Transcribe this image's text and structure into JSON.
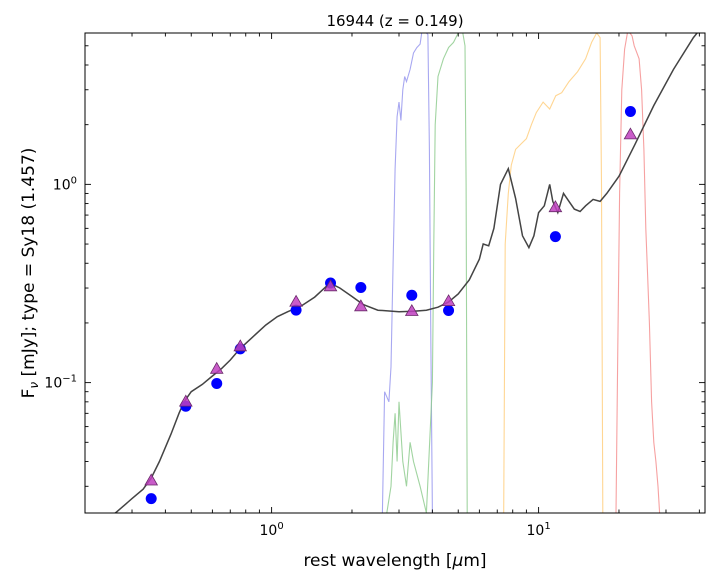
{
  "chart_data": {
    "type": "scatter",
    "title": "16944 (z = 0.149)",
    "xlabel_prefix": "rest wavelength [",
    "xlabel_mu": "μ",
    "xlabel_suffix": "m]",
    "ylabel_prefix": "F",
    "ylabel_sub": "ν",
    "ylabel_suffix": " [mJy];  type = Sy18 (1.457)",
    "xscale": "log",
    "yscale": "log",
    "xlim": [
      0.2,
      42
    ],
    "ylim": [
      0.022,
      5.8
    ],
    "x_tick_labels": [
      {
        "value": 1,
        "base": "10",
        "exp": "0"
      },
      {
        "value": 10,
        "base": "10",
        "exp": "1"
      }
    ],
    "y_tick_labels": [
      {
        "value": 0.1,
        "base": "10",
        "exp": "−1"
      },
      {
        "value": 1,
        "base": "10",
        "exp": "0"
      }
    ],
    "grid": false,
    "legend": "none",
    "colors": {
      "observed": "#0000ff",
      "model_photometry": "#bf40bf",
      "sed": "#444444",
      "filter_w1": "#9999ee",
      "filter_w2": "#90cc90",
      "filter_w3": "#ffcf80",
      "filter_w4": "#f59090"
    },
    "observed_points": [
      {
        "x": 0.354,
        "y": 0.026
      },
      {
        "x": 0.477,
        "y": 0.076
      },
      {
        "x": 0.623,
        "y": 0.099
      },
      {
        "x": 0.763,
        "y": 0.148
      },
      {
        "x": 1.235,
        "y": 0.232
      },
      {
        "x": 1.662,
        "y": 0.318
      },
      {
        "x": 2.159,
        "y": 0.302
      },
      {
        "x": 3.35,
        "y": 0.276
      },
      {
        "x": 4.6,
        "y": 0.231
      },
      {
        "x": 11.56,
        "y": 0.545
      },
      {
        "x": 22.08,
        "y": 2.33
      }
    ],
    "model_points": [
      {
        "x": 0.354,
        "y": 0.032
      },
      {
        "x": 0.477,
        "y": 0.08
      },
      {
        "x": 0.623,
        "y": 0.117
      },
      {
        "x": 0.763,
        "y": 0.152
      },
      {
        "x": 1.235,
        "y": 0.255
      },
      {
        "x": 1.662,
        "y": 0.305
      },
      {
        "x": 2.159,
        "y": 0.242
      },
      {
        "x": 3.35,
        "y": 0.229
      },
      {
        "x": 4.6,
        "y": 0.257
      },
      {
        "x": 11.56,
        "y": 0.765
      },
      {
        "x": 22.08,
        "y": 1.78
      }
    ],
    "sed_model": {
      "x": [
        0.2,
        0.26,
        0.3,
        0.33,
        0.354,
        0.38,
        0.42,
        0.45,
        0.47,
        0.5,
        0.55,
        0.6,
        0.65,
        0.7,
        0.76,
        0.85,
        0.95,
        1.05,
        1.15,
        1.3,
        1.45,
        1.6,
        1.7,
        1.8,
        2.0,
        2.2,
        2.5,
        3.0,
        3.4,
        3.8,
        4.2,
        4.6,
        5.0,
        5.5,
        6.0,
        6.2,
        6.5,
        6.8,
        7.2,
        7.7,
        8.2,
        8.7,
        9.2,
        9.6,
        10.0,
        10.5,
        11.0,
        11.3,
        11.8,
        12.4,
        13.0,
        13.6,
        14.3,
        15.0,
        16.0,
        17.0,
        18.0,
        20.0,
        23.0,
        27.0,
        32.0,
        38.0,
        42.0
      ],
      "y": [
        0.02,
        0.022,
        0.026,
        0.029,
        0.033,
        0.04,
        0.055,
        0.07,
        0.08,
        0.09,
        0.098,
        0.108,
        0.118,
        0.13,
        0.148,
        0.17,
        0.195,
        0.215,
        0.228,
        0.245,
        0.27,
        0.305,
        0.312,
        0.3,
        0.272,
        0.248,
        0.232,
        0.228,
        0.229,
        0.232,
        0.24,
        0.255,
        0.28,
        0.33,
        0.42,
        0.5,
        0.49,
        0.6,
        1.0,
        1.2,
        0.85,
        0.55,
        0.48,
        0.55,
        0.72,
        0.78,
        1.0,
        0.82,
        0.72,
        0.9,
        0.82,
        0.75,
        0.73,
        0.78,
        0.84,
        0.82,
        0.9,
        1.1,
        1.6,
        2.5,
        3.8,
        5.5,
        6.5
      ]
    },
    "filter_curves": [
      {
        "color_key": "filter_w1",
        "x": [
          2.6,
          2.65,
          2.75,
          2.8,
          2.85,
          2.9,
          2.95,
          3.0,
          3.05,
          3.1,
          3.15,
          3.2,
          3.3,
          3.4,
          3.5,
          3.6,
          3.65,
          3.7,
          3.75,
          3.8,
          3.85,
          3.9,
          3.95,
          4.0
        ],
        "y": [
          0.022,
          0.09,
          0.08,
          0.12,
          0.4,
          1.2,
          2.2,
          2.6,
          2.1,
          3.0,
          3.5,
          3.3,
          3.8,
          4.6,
          4.9,
          5.1,
          5.8,
          5.8,
          5.8,
          5.8,
          5.7,
          1.5,
          0.15,
          0.022
        ]
      },
      {
        "color_key": "filter_w2",
        "x": [
          2.7,
          2.8,
          2.85,
          2.9,
          2.95,
          3.0,
          3.1,
          3.2,
          3.3,
          3.4,
          3.6,
          3.8,
          4.0,
          4.05,
          4.1,
          4.2,
          4.4,
          4.6,
          4.8,
          5.0,
          5.1,
          5.2,
          5.3,
          5.35,
          5.4
        ],
        "y": [
          0.022,
          0.03,
          0.05,
          0.07,
          0.04,
          0.08,
          0.04,
          0.03,
          0.05,
          0.04,
          0.03,
          0.022,
          0.1,
          0.5,
          2.0,
          3.5,
          4.3,
          4.9,
          5.2,
          5.8,
          5.8,
          5.8,
          5.0,
          1.0,
          0.022
        ]
      },
      {
        "color_key": "filter_w3",
        "x": [
          7.4,
          7.5,
          7.7,
          7.9,
          8.2,
          8.6,
          9.0,
          9.4,
          9.8,
          10.4,
          11.0,
          11.6,
          12.2,
          13.0,
          14.0,
          15.0,
          15.8,
          16.5,
          17.0,
          17.2,
          17.4
        ],
        "y": [
          0.022,
          0.5,
          0.9,
          1.25,
          1.5,
          1.6,
          1.7,
          2.0,
          2.3,
          2.6,
          2.4,
          2.8,
          2.9,
          3.3,
          3.7,
          4.3,
          5.2,
          5.8,
          5.5,
          1.0,
          0.022
        ]
      },
      {
        "color_key": "filter_w4",
        "x": [
          19.5,
          19.8,
          20.1,
          20.5,
          21.0,
          21.5,
          22.0,
          22.4,
          22.8,
          23.2,
          23.8,
          24.3,
          24.8,
          25.2,
          25.6,
          26.0,
          26.5,
          27.0,
          27.5,
          28.0,
          28.4
        ],
        "y": [
          0.022,
          0.15,
          0.9,
          3.0,
          4.8,
          5.8,
          5.8,
          5.6,
          5.0,
          4.7,
          4.3,
          3.0,
          1.5,
          0.6,
          0.35,
          0.2,
          0.08,
          0.05,
          0.04,
          0.03,
          0.022
        ]
      }
    ]
  }
}
